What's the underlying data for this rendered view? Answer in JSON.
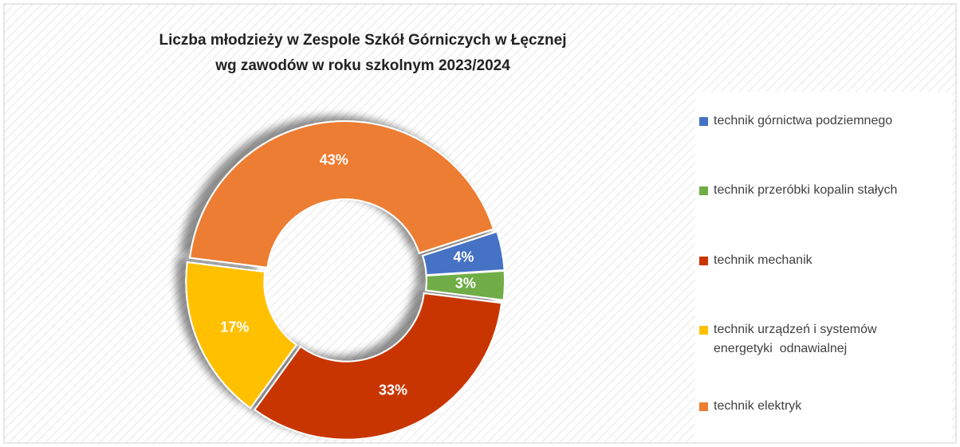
{
  "chart_data": {
    "type": "donut",
    "title": "Liczba młodzieży w Zespole Szkół Górniczych w Łęcznej",
    "subtitle": "wg zawodów w roku szkolnym 2023/2024",
    "categories": [
      "technik górnictwa podziemnego",
      "technik przeróbki kopalin stałych",
      "technik mechanik",
      "technik urządzeń i systemów energetyki  odnawialnej",
      "technik elektryk"
    ],
    "values": [
      4,
      3,
      33,
      17,
      43
    ],
    "value_labels": [
      "4%",
      "3%",
      "33%",
      "17%",
      "43%"
    ],
    "colors": [
      "#4472c4",
      "#70ad47",
      "#c93400",
      "#ffc000",
      "#ed7d31"
    ],
    "legend": "right"
  }
}
